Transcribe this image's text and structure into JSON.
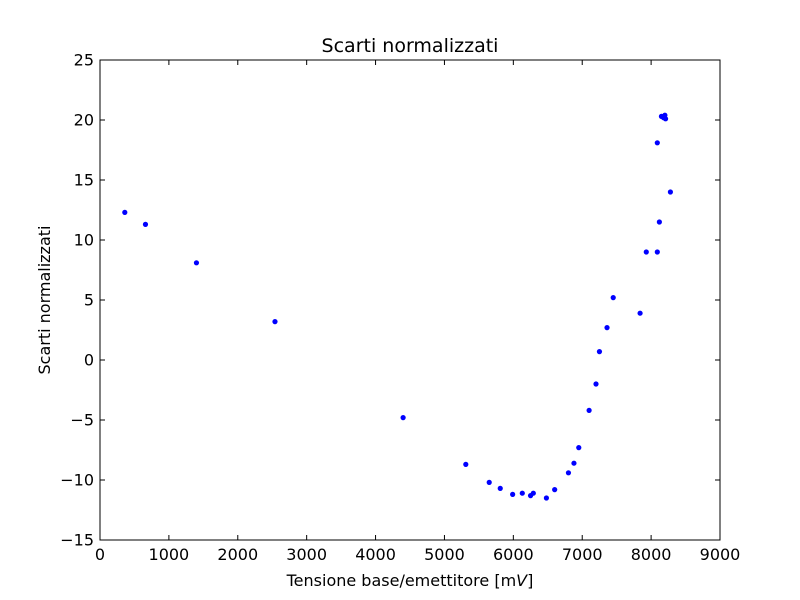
{
  "chart_data": {
    "type": "scatter",
    "title": "Scarti normalizzati",
    "xlabel_prefix": "Tensione base/emettitore [m",
    "xlabel_unit": "V",
    "xlabel_suffix": "]",
    "ylabel": "Scarti normalizzati",
    "xlim": [
      0,
      9000
    ],
    "ylim": [
      -15,
      25
    ],
    "xticks": [
      0,
      1000,
      2000,
      3000,
      4000,
      5000,
      6000,
      7000,
      8000,
      9000
    ],
    "yticks": [
      -15,
      -10,
      -5,
      0,
      5,
      10,
      15,
      20,
      25
    ],
    "xtick_labels": [
      "0",
      "1000",
      "2000",
      "3000",
      "4000",
      "5000",
      "6000",
      "7000",
      "8000",
      "9000"
    ],
    "ytick_labels": [
      "−15",
      "−10",
      "−5",
      "0",
      "5",
      "10",
      "15",
      "20",
      "25"
    ],
    "grid": false,
    "marker_color": "#0000ff",
    "points": [
      {
        "x": 360,
        "y": 12.3
      },
      {
        "x": 660,
        "y": 11.3
      },
      {
        "x": 1400,
        "y": 8.1
      },
      {
        "x": 2540,
        "y": 3.2
      },
      {
        "x": 4400,
        "y": -4.8
      },
      {
        "x": 5310,
        "y": -8.7
      },
      {
        "x": 5650,
        "y": -10.2
      },
      {
        "x": 5810,
        "y": -10.7
      },
      {
        "x": 5990,
        "y": -11.2
      },
      {
        "x": 6130,
        "y": -11.1
      },
      {
        "x": 6250,
        "y": -11.3
      },
      {
        "x": 6290,
        "y": -11.1
      },
      {
        "x": 6480,
        "y": -11.5
      },
      {
        "x": 6600,
        "y": -10.8
      },
      {
        "x": 6800,
        "y": -9.4
      },
      {
        "x": 6880,
        "y": -8.6
      },
      {
        "x": 6950,
        "y": -7.3
      },
      {
        "x": 7100,
        "y": -4.2
      },
      {
        "x": 7200,
        "y": -2.0
      },
      {
        "x": 7250,
        "y": 0.7
      },
      {
        "x": 7360,
        "y": 2.7
      },
      {
        "x": 7450,
        "y": 5.2
      },
      {
        "x": 7840,
        "y": 3.9
      },
      {
        "x": 7930,
        "y": 9.0
      },
      {
        "x": 8090,
        "y": 9.0
      },
      {
        "x": 8120,
        "y": 11.5
      },
      {
        "x": 8090,
        "y": 18.1
      },
      {
        "x": 8150,
        "y": 20.3
      },
      {
        "x": 8180,
        "y": 20.2
      },
      {
        "x": 8200,
        "y": 20.4
      },
      {
        "x": 8210,
        "y": 20.1
      },
      {
        "x": 8280,
        "y": 14.0
      }
    ]
  }
}
